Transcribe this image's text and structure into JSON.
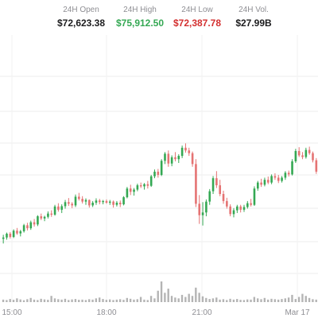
{
  "stats": [
    {
      "label": "24H Open",
      "value": "$72,623.38",
      "color": "#1c1c1e"
    },
    {
      "label": "24H High",
      "value": "$75,912.50",
      "color": "#34a853"
    },
    {
      "label": "24H Low",
      "value": "$72,387.78",
      "color": "#d32f2f"
    },
    {
      "label": "24H Vol.",
      "value": "$27.99B",
      "color": "#1c1c1e"
    }
  ],
  "chart_data": {
    "type": "candlestick",
    "x_tick_labels": [
      "15:00",
      "18:00",
      "21:00",
      "Mar 17"
    ],
    "grid": true,
    "up_color": "#34a853",
    "down_color": "#e57373",
    "candles": [
      [
        0.05,
        0.2,
        -0.12,
        0.1
      ],
      [
        0.1,
        0.28,
        0.02,
        0.24
      ],
      [
        0.24,
        0.3,
        0.06,
        0.12
      ],
      [
        0.12,
        0.4,
        0.08,
        0.35
      ],
      [
        0.35,
        0.45,
        0.2,
        0.25
      ],
      [
        0.25,
        0.38,
        0.14,
        0.33
      ],
      [
        0.33,
        0.6,
        0.28,
        0.55
      ],
      [
        0.55,
        0.64,
        0.36,
        0.44
      ],
      [
        0.44,
        0.72,
        0.38,
        0.66
      ],
      [
        0.66,
        0.78,
        0.5,
        0.58
      ],
      [
        0.58,
        0.92,
        0.52,
        0.88
      ],
      [
        0.88,
        0.98,
        0.74,
        0.8
      ],
      [
        0.8,
        0.9,
        0.7,
        0.86
      ],
      [
        0.86,
        1.06,
        0.8,
        0.98
      ],
      [
        0.98,
        1.1,
        0.86,
        0.94
      ],
      [
        0.94,
        1.3,
        0.9,
        1.24
      ],
      [
        1.24,
        1.36,
        1.05,
        1.12
      ],
      [
        1.12,
        1.32,
        1.0,
        1.25
      ],
      [
        1.25,
        1.48,
        1.16,
        1.4
      ],
      [
        1.4,
        1.55,
        1.26,
        1.34
      ],
      [
        1.34,
        1.4,
        1.18,
        1.28
      ],
      [
        1.28,
        1.68,
        1.22,
        1.6
      ],
      [
        1.6,
        1.74,
        1.46,
        1.52
      ],
      [
        1.52,
        1.62,
        1.35,
        1.42
      ],
      [
        1.42,
        1.54,
        1.3,
        1.48
      ],
      [
        1.48,
        1.5,
        1.2,
        1.28
      ],
      [
        1.28,
        1.44,
        1.22,
        1.38
      ],
      [
        1.38,
        1.54,
        1.3,
        1.46
      ],
      [
        1.46,
        1.52,
        1.32,
        1.4
      ],
      [
        1.4,
        1.48,
        1.32,
        1.44
      ],
      [
        1.44,
        1.5,
        1.34,
        1.38
      ],
      [
        1.38,
        1.48,
        1.3,
        1.42
      ],
      [
        1.42,
        1.46,
        1.2,
        1.3
      ],
      [
        1.3,
        1.44,
        1.24,
        1.38
      ],
      [
        1.38,
        1.46,
        1.22,
        1.32
      ],
      [
        1.32,
        1.62,
        1.28,
        1.58
      ],
      [
        1.58,
        1.96,
        1.54,
        1.9
      ],
      [
        1.9,
        2.04,
        1.66,
        1.78
      ],
      [
        1.78,
        1.92,
        1.64,
        1.86
      ],
      [
        1.86,
        2.08,
        1.8,
        2.02
      ],
      [
        2.02,
        2.12,
        1.92,
        1.98
      ],
      [
        1.98,
        2.1,
        1.86,
        2.06
      ],
      [
        2.06,
        2.18,
        1.9,
        2.0
      ],
      [
        2.0,
        2.4,
        1.96,
        2.35
      ],
      [
        2.35,
        2.6,
        2.28,
        2.52
      ],
      [
        2.52,
        2.62,
        2.3,
        2.4
      ],
      [
        2.4,
        2.98,
        2.36,
        2.92
      ],
      [
        2.92,
        3.24,
        2.8,
        3.18
      ],
      [
        3.18,
        3.3,
        2.7,
        2.82
      ],
      [
        2.82,
        3.12,
        2.72,
        3.05
      ],
      [
        3.05,
        3.24,
        2.9,
        2.98
      ],
      [
        2.98,
        3.16,
        2.84,
        3.1
      ],
      [
        3.1,
        3.48,
        3.02,
        3.4
      ],
      [
        3.4,
        3.56,
        3.22,
        3.3
      ],
      [
        3.3,
        3.4,
        3.1,
        3.2
      ],
      [
        3.2,
        3.26,
        2.7,
        2.8
      ],
      [
        2.8,
        2.98,
        1.22,
        1.34
      ],
      [
        1.34,
        1.66,
        0.6,
        0.92
      ],
      [
        0.92,
        1.4,
        0.54,
        1.02
      ],
      [
        1.02,
        1.5,
        0.88,
        1.42
      ],
      [
        1.42,
        1.88,
        1.3,
        1.8
      ],
      [
        1.8,
        2.36,
        1.7,
        2.28
      ],
      [
        2.28,
        2.54,
        1.92,
        2.02
      ],
      [
        2.02,
        2.22,
        1.62,
        1.7
      ],
      [
        1.7,
        1.82,
        1.34,
        1.44
      ],
      [
        1.44,
        1.56,
        1.16,
        1.24
      ],
      [
        1.24,
        1.32,
        0.88,
        0.96
      ],
      [
        0.96,
        1.18,
        0.84,
        1.1
      ],
      [
        1.1,
        1.3,
        1.0,
        1.24
      ],
      [
        1.24,
        1.3,
        1.02,
        1.12
      ],
      [
        1.12,
        1.3,
        1.04,
        1.22
      ],
      [
        1.22,
        1.44,
        1.16,
        1.36
      ],
      [
        1.36,
        1.52,
        1.24,
        1.3
      ],
      [
        1.3,
        1.98,
        1.26,
        1.9
      ],
      [
        1.9,
        2.18,
        1.82,
        2.12
      ],
      [
        2.12,
        2.26,
        1.96,
        2.04
      ],
      [
        2.04,
        2.3,
        1.98,
        2.22
      ],
      [
        2.22,
        2.34,
        2.06,
        2.12
      ],
      [
        2.12,
        2.42,
        2.06,
        2.36
      ],
      [
        2.36,
        2.46,
        2.22,
        2.3
      ],
      [
        2.3,
        2.4,
        2.1,
        2.18
      ],
      [
        2.18,
        2.36,
        2.12,
        2.3
      ],
      [
        2.3,
        2.54,
        2.22,
        2.48
      ],
      [
        2.48,
        2.56,
        2.34,
        2.42
      ],
      [
        2.42,
        2.98,
        2.38,
        2.9
      ],
      [
        2.9,
        3.36,
        2.84,
        3.28
      ],
      [
        3.28,
        3.42,
        3.06,
        3.12
      ],
      [
        3.12,
        3.24,
        2.98,
        3.06
      ],
      [
        3.06,
        3.4,
        3.0,
        3.32
      ],
      [
        3.32,
        3.44,
        3.14,
        3.2
      ],
      [
        3.2,
        3.26,
        2.86,
        2.94
      ],
      [
        2.94,
        3.02,
        2.44,
        2.52
      ]
    ],
    "volumes": [
      0.12,
      0.1,
      0.15,
      0.11,
      0.18,
      0.13,
      0.09,
      0.14,
      0.2,
      0.12,
      0.1,
      0.16,
      0.13,
      0.11,
      0.3,
      0.18,
      0.14,
      0.12,
      0.16,
      0.1,
      0.13,
      0.15,
      0.11,
      0.12,
      0.1,
      0.14,
      0.12,
      0.18,
      0.22,
      0.15,
      0.11,
      0.13,
      0.1,
      0.12,
      0.14,
      0.11,
      0.2,
      0.16,
      0.12,
      0.14,
      0.25,
      0.12,
      0.1,
      0.3,
      0.18,
      0.55,
      1.0,
      0.45,
      0.65,
      0.3,
      0.22,
      0.18,
      0.35,
      0.25,
      0.4,
      0.3,
      0.7,
      0.45,
      0.28,
      0.2,
      0.15,
      0.18,
      0.22,
      0.12,
      0.14,
      0.1,
      0.16,
      0.12,
      0.15,
      0.11,
      0.1,
      0.13,
      0.12,
      0.25,
      0.18,
      0.14,
      0.2,
      0.12,
      0.16,
      0.14,
      0.12,
      0.15,
      0.18,
      0.22,
      0.35,
      0.15,
      0.25,
      0.4,
      0.3,
      0.2,
      0.14,
      0.12
    ]
  }
}
